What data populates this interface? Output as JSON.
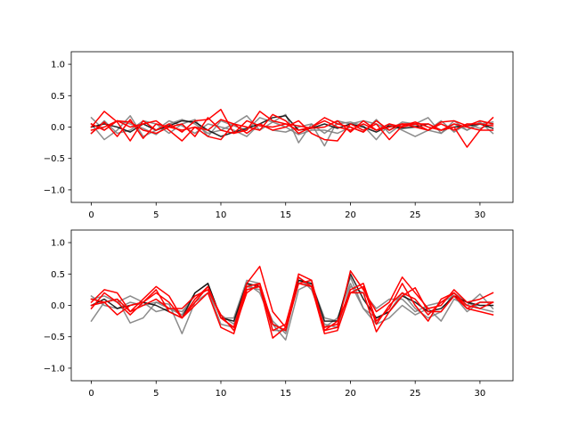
{
  "colors": {
    "gray": "#808080",
    "dark": "#000000",
    "red": "#ff0000",
    "background": "#ffffff"
  },
  "chart_data": [
    {
      "type": "line",
      "title": "",
      "xlabel": "",
      "ylabel": "",
      "xlim": [
        -1.55,
        32.55
      ],
      "ylim": [
        -1.2,
        1.2
      ],
      "grid": false,
      "legend": "none",
      "xticks": [
        0,
        5,
        10,
        15,
        20,
        25,
        30
      ],
      "xtick_labels": [
        "0",
        "5",
        "10",
        "15",
        "20",
        "25",
        "30"
      ],
      "yticks": [
        1.0,
        0.5,
        0.0,
        -0.5,
        -1.0
      ],
      "ytick_labels": [
        "1.0",
        "0.5",
        "0.0",
        "−0.5",
        "−1.0"
      ],
      "x": [
        0,
        1,
        2,
        3,
        4,
        5,
        6,
        7,
        8,
        9,
        10,
        11,
        12,
        13,
        14,
        15,
        16,
        17,
        18,
        19,
        20,
        21,
        22,
        23,
        24,
        25,
        26,
        27,
        28,
        29,
        30,
        31
      ],
      "series": [
        {
          "color": "#808080",
          "opacity": 0.9,
          "values": [
            0.15,
            -0.05,
            0.1,
            0.05,
            -0.02,
            -0.12,
            0.05,
            0.12,
            0.05,
            -0.1,
            -0.05,
            0.05,
            0.18,
            -0.05,
            0.08,
            0.2,
            -0.25,
            0.05,
            -0.1,
            0.05,
            0.08,
            0.02,
            -0.2,
            0.05,
            -0.05,
            -0.15,
            -0.05,
            -0.1,
            0.1,
            -0.05,
            0.05,
            0.08
          ]
        },
        {
          "color": "#808080",
          "opacity": 0.9,
          "values": [
            0.05,
            -0.2,
            -0.05,
            0.18,
            -0.15,
            -0.05,
            0.1,
            0.02,
            -0.1,
            0.05,
            0.0,
            -0.05,
            -0.15,
            0.05,
            -0.05,
            -0.08,
            0.0,
            0.05,
            -0.3,
            0.1,
            0.05,
            0.1,
            0.05,
            -0.05,
            0.08,
            0.05,
            0.15,
            -0.1,
            0.05,
            -0.05,
            0.08,
            -0.1
          ]
        },
        {
          "color": "#808080",
          "opacity": 0.9,
          "values": [
            -0.1,
            0.1,
            -0.1,
            -0.05,
            0.1,
            0.05,
            -0.1,
            0.05,
            0.12,
            -0.15,
            0.1,
            0.02,
            -0.05,
            0.15,
            0.08,
            0.0,
            -0.12,
            -0.05,
            -0.05,
            -0.1,
            0.0,
            -0.08,
            0.12,
            -0.1,
            0.05,
            0.02,
            -0.05,
            0.1,
            -0.08,
            0.05,
            -0.02,
            0.05
          ]
        },
        {
          "color": "#000000",
          "opacity": 0.85,
          "values": [
            0.0,
            0.05,
            0.0,
            -0.08,
            0.05,
            -0.05,
            0.02,
            0.1,
            0.08,
            -0.05,
            -0.15,
            -0.08,
            -0.02,
            0.05,
            0.15,
            0.18,
            -0.05,
            -0.02,
            0.05,
            -0.02,
            0.05,
            0.0,
            -0.08,
            0.02,
            -0.02,
            0.0,
            0.05,
            -0.05,
            0.0,
            0.02,
            0.05,
            -0.02
          ]
        },
        {
          "color": "#ff0000",
          "opacity": 1,
          "values": [
            0.0,
            0.25,
            0.08,
            -0.22,
            0.1,
            -0.05,
            0.05,
            -0.08,
            0.1,
            0.12,
            0.28,
            -0.1,
            -0.05,
            0.25,
            0.1,
            0.05,
            -0.05,
            0.0,
            0.15,
            0.05,
            0.0,
            -0.08,
            0.1,
            -0.05,
            0.05,
            0.05,
            0.05,
            -0.05,
            0.0,
            -0.32,
            -0.05,
            0.15
          ]
        },
        {
          "color": "#ff0000",
          "opacity": 1,
          "values": [
            -0.1,
            0.08,
            -0.15,
            0.12,
            -0.18,
            0.05,
            0.0,
            -0.05,
            0.0,
            -0.05,
            0.12,
            0.05,
            -0.1,
            0.05,
            -0.05,
            0.0,
            0.1,
            -0.1,
            -0.2,
            -0.22,
            0.05,
            -0.05,
            0.05,
            -0.2,
            0.02,
            0.08,
            0.0,
            -0.05,
            0.05,
            0.0,
            -0.05,
            -0.05
          ]
        },
        {
          "color": "#ff0000",
          "opacity": 1,
          "values": [
            0.05,
            -0.05,
            0.1,
            0.0,
            0.05,
            0.1,
            -0.05,
            -0.22,
            0.0,
            -0.15,
            -0.2,
            0.05,
            0.0,
            -0.05,
            0.2,
            0.1,
            -0.1,
            0.0,
            0.1,
            0.0,
            -0.05,
            0.05,
            -0.05,
            0.0,
            0.05,
            0.0,
            -0.05,
            0.05,
            -0.05,
            0.05,
            0.05,
            0.02
          ]
        },
        {
          "color": "#ff0000",
          "opacity": 1,
          "values": [
            -0.05,
            0.0,
            0.1,
            0.08,
            -0.05,
            -0.1,
            0.0,
            0.05,
            -0.15,
            0.15,
            -0.05,
            -0.1,
            0.1,
            0.02,
            0.0,
            0.05,
            0.02,
            -0.02,
            0.0,
            0.1,
            -0.08,
            0.1,
            -0.05,
            0.05,
            0.0,
            0.05,
            -0.05,
            0.08,
            0.1,
            0.02,
            0.1,
            0.05
          ]
        }
      ]
    },
    {
      "type": "line",
      "title": "",
      "xlabel": "",
      "ylabel": "",
      "xlim": [
        -1.55,
        32.55
      ],
      "ylim": [
        -1.2,
        1.2
      ],
      "grid": false,
      "legend": "none",
      "xticks": [
        0,
        5,
        10,
        15,
        20,
        25,
        30
      ],
      "xtick_labels": [
        "0",
        "5",
        "10",
        "15",
        "20",
        "25",
        "30"
      ],
      "yticks": [
        1.0,
        0.5,
        0.0,
        -0.5,
        -1.0
      ],
      "ytick_labels": [
        "1.0",
        "0.5",
        "0.0",
        "−0.5",
        "−1.0"
      ],
      "x": [
        0,
        1,
        2,
        3,
        4,
        5,
        6,
        7,
        8,
        9,
        10,
        11,
        12,
        13,
        14,
        15,
        16,
        17,
        18,
        19,
        20,
        21,
        22,
        23,
        24,
        25,
        26,
        27,
        28,
        29,
        30,
        31
      ],
      "series": [
        {
          "color": "#808080",
          "opacity": 0.9,
          "values": [
            -0.25,
            0.05,
            0.1,
            -0.28,
            -0.2,
            0.05,
            0.02,
            -0.45,
            0.05,
            0.2,
            -0.15,
            -0.3,
            0.35,
            0.2,
            -0.3,
            -0.55,
            0.25,
            0.35,
            -0.2,
            -0.25,
            0.45,
            -0.05,
            -0.3,
            -0.2,
            0.0,
            -0.15,
            -0.05,
            -0.25,
            0.1,
            0.0,
            0.18,
            -0.05
          ]
        },
        {
          "color": "#808080",
          "opacity": 0.9,
          "values": [
            0.1,
            0.15,
            0.05,
            0.15,
            0.05,
            -0.1,
            -0.05,
            -0.15,
            0.2,
            0.35,
            -0.2,
            -0.2,
            0.4,
            0.35,
            -0.4,
            -0.4,
            0.45,
            0.25,
            -0.3,
            -0.35,
            0.3,
            0.2,
            -0.05,
            0.1,
            0.1,
            -0.1,
            0.0,
            0.05,
            0.15,
            -0.1,
            0.05,
            0.05
          ]
        },
        {
          "color": "#808080",
          "opacity": 0.9,
          "values": [
            0.15,
            0.0,
            -0.05,
            0.05,
            0.0,
            0.05,
            -0.05,
            -0.1,
            0.15,
            0.25,
            -0.3,
            -0.35,
            0.3,
            0.25,
            -0.25,
            -0.45,
            0.4,
            0.3,
            -0.35,
            -0.2,
            0.35,
            -0.05,
            -0.2,
            -0.1,
            0.2,
            -0.05,
            -0.2,
            -0.1,
            0.2,
            0.05,
            -0.05,
            -0.1
          ]
        },
        {
          "color": "#000000",
          "opacity": 0.85,
          "values": [
            0.0,
            0.1,
            -0.05,
            0.0,
            0.05,
            0.0,
            -0.1,
            -0.2,
            0.2,
            0.35,
            -0.2,
            -0.25,
            0.35,
            0.3,
            -0.3,
            -0.4,
            0.4,
            0.35,
            -0.25,
            -0.25,
            0.5,
            0.1,
            -0.2,
            -0.1,
            0.15,
            0.05,
            -0.1,
            -0.05,
            0.15,
            0.05,
            0.0,
            0.0
          ]
        },
        {
          "color": "#ff0000",
          "opacity": 1,
          "values": [
            0.05,
            0.25,
            0.2,
            -0.1,
            0.1,
            0.3,
            0.15,
            -0.2,
            0.1,
            0.3,
            -0.2,
            -0.35,
            0.35,
            0.62,
            -0.1,
            -0.35,
            0.5,
            0.4,
            -0.4,
            -0.35,
            0.55,
            0.25,
            -0.1,
            0.05,
            0.45,
            0.2,
            -0.05,
            0.0,
            0.25,
            0.05,
            0.1,
            0.2
          ]
        },
        {
          "color": "#ff0000",
          "opacity": 1,
          "values": [
            -0.05,
            0.2,
            0.05,
            -0.15,
            0.05,
            0.2,
            0.05,
            -0.2,
            0.0,
            0.2,
            -0.35,
            -0.45,
            0.25,
            0.3,
            -0.52,
            -0.35,
            0.35,
            0.3,
            -0.45,
            -0.4,
            0.2,
            0.2,
            -0.42,
            -0.1,
            0.15,
            0.28,
            -0.1,
            -0.1,
            0.15,
            -0.05,
            0.05,
            0.05
          ]
        },
        {
          "color": "#ff0000",
          "opacity": 1,
          "values": [
            0.0,
            0.05,
            -0.15,
            0.0,
            0.05,
            0.25,
            -0.1,
            -0.2,
            0.05,
            0.3,
            -0.2,
            -0.35,
            0.3,
            0.35,
            -0.4,
            -0.3,
            0.45,
            0.3,
            -0.35,
            -0.3,
            0.25,
            0.35,
            -0.25,
            -0.05,
            0.35,
            0.0,
            -0.25,
            0.1,
            0.2,
            -0.05,
            -0.1,
            -0.15
          ]
        },
        {
          "color": "#ff0000",
          "opacity": 1,
          "values": [
            0.1,
            0.05,
            0.1,
            -0.1,
            0.0,
            0.1,
            -0.05,
            -0.05,
            0.15,
            0.25,
            -0.15,
            -0.4,
            0.2,
            0.35,
            -0.3,
            -0.4,
            0.35,
            0.4,
            -0.4,
            -0.25,
            0.2,
            0.3,
            -0.3,
            0.0,
            0.2,
            0.1,
            -0.15,
            0.05,
            0.2,
            0.0,
            -0.05,
            0.05
          ]
        }
      ]
    }
  ]
}
